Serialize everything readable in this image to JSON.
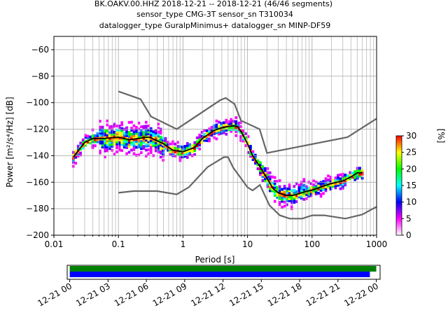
{
  "chart_data": [
    {
      "type": "heatmap",
      "title_lines": [
        "BK.OAKV.00.HHZ   2018-12-21 -- 2018-12-21  (46/46 segments)",
        "sensor_type CMG-3T sensor_sn T310034",
        "datalogger_type GuralpMinimus+ datalogger_sn MINP-DF59"
      ],
      "xlabel": "Period [s]",
      "ylabel": "Power [m²/s⁴/Hz] [dB]",
      "xscale": "log",
      "xlim": [
        0.01,
        1000
      ],
      "ylim": [
        -200,
        -50
      ],
      "grid": true,
      "x_ticks": [
        0.01,
        0.1,
        1,
        10,
        100,
        1000
      ],
      "x_tick_labels": [
        "0.01",
        "0.1",
        "1",
        "10",
        "100",
        "1000"
      ],
      "y_ticks": [
        -200,
        -180,
        -160,
        -140,
        -120,
        -100,
        -80,
        -60
      ],
      "y_tick_labels": [
        "−200",
        "−180",
        "−160",
        "−140",
        "−120",
        "−100",
        "−80",
        "−60"
      ],
      "colorbar": {
        "label": "[%]",
        "range": [
          0,
          30
        ],
        "ticks": [
          "0",
          "5",
          "10",
          "15",
          "20",
          "25",
          "30"
        ],
        "colors": [
          "#ffffff",
          "#ff00ff",
          "#0000ff",
          "#00ffff",
          "#00ff00",
          "#ffff00",
          "#ff0000"
        ]
      },
      "noise_model_high": {
        "x": [
          0.1,
          0.22,
          0.32,
          0.8,
          3.8,
          4.6,
          6.3,
          7.9,
          15.4,
          20,
          354.8,
          1000
        ],
        "y": [
          -91.5,
          -97.4,
          -110.5,
          -120,
          -98,
          -96.5,
          -101,
          -113.5,
          -120,
          -138,
          -126,
          -112
        ]
      },
      "noise_model_low": {
        "x": [
          0.1,
          0.17,
          0.4,
          0.8,
          1.24,
          2.4,
          4.3,
          5.0,
          6.0,
          10,
          12,
          15.6,
          21.9,
          31.6,
          45,
          70,
          101,
          154,
          328,
          600,
          1000
        ],
        "y": [
          -168,
          -166.7,
          -166.7,
          -169.2,
          -163.7,
          -148.6,
          -141.1,
          -141.1,
          -149,
          -163.8,
          -166.2,
          -162.1,
          -177.5,
          -185,
          -187.5,
          -187.5,
          -185,
          -185,
          -187.5,
          -184.4,
          -178.5
        ]
      },
      "mean_curve": {
        "x": [
          0.02,
          0.025,
          0.03,
          0.04,
          0.06,
          0.1,
          0.15,
          0.2,
          0.3,
          0.5,
          0.7,
          1.0,
          1.5,
          2.0,
          3.0,
          4.0,
          5.0,
          6.0,
          7.0,
          8.0,
          10,
          12,
          15,
          20,
          25,
          30,
          40,
          50,
          60,
          80,
          100,
          150,
          200,
          300,
          400,
          500,
          600
        ],
        "y": [
          -141,
          -135,
          -130,
          -127,
          -127,
          -126,
          -128,
          -127,
          -126,
          -131,
          -136,
          -137,
          -134,
          -127,
          -121,
          -119,
          -118,
          -117.5,
          -118,
          -122,
          -131,
          -140,
          -147,
          -157,
          -165,
          -168,
          -170,
          -170,
          -169,
          -167,
          -166,
          -163,
          -161,
          -159,
          -156,
          -153,
          -153
        ]
      },
      "timeline_panel": {
        "x_tick_labels": [
          "12-21 00",
          "12-21 03",
          "12-21 06",
          "12-21 09",
          "12-21 12",
          "12-21 15",
          "12-21 18",
          "12-21 21",
          "12-22 00"
        ],
        "x_range_hours": [
          -0.2,
          24.3
        ],
        "bars": [
          {
            "color": "#008000",
            "start_hour": 0,
            "end_hour": 24.0
          },
          {
            "color": "#0000ff",
            "start_hour": 0,
            "end_hour": 23.5
          }
        ]
      }
    }
  ]
}
